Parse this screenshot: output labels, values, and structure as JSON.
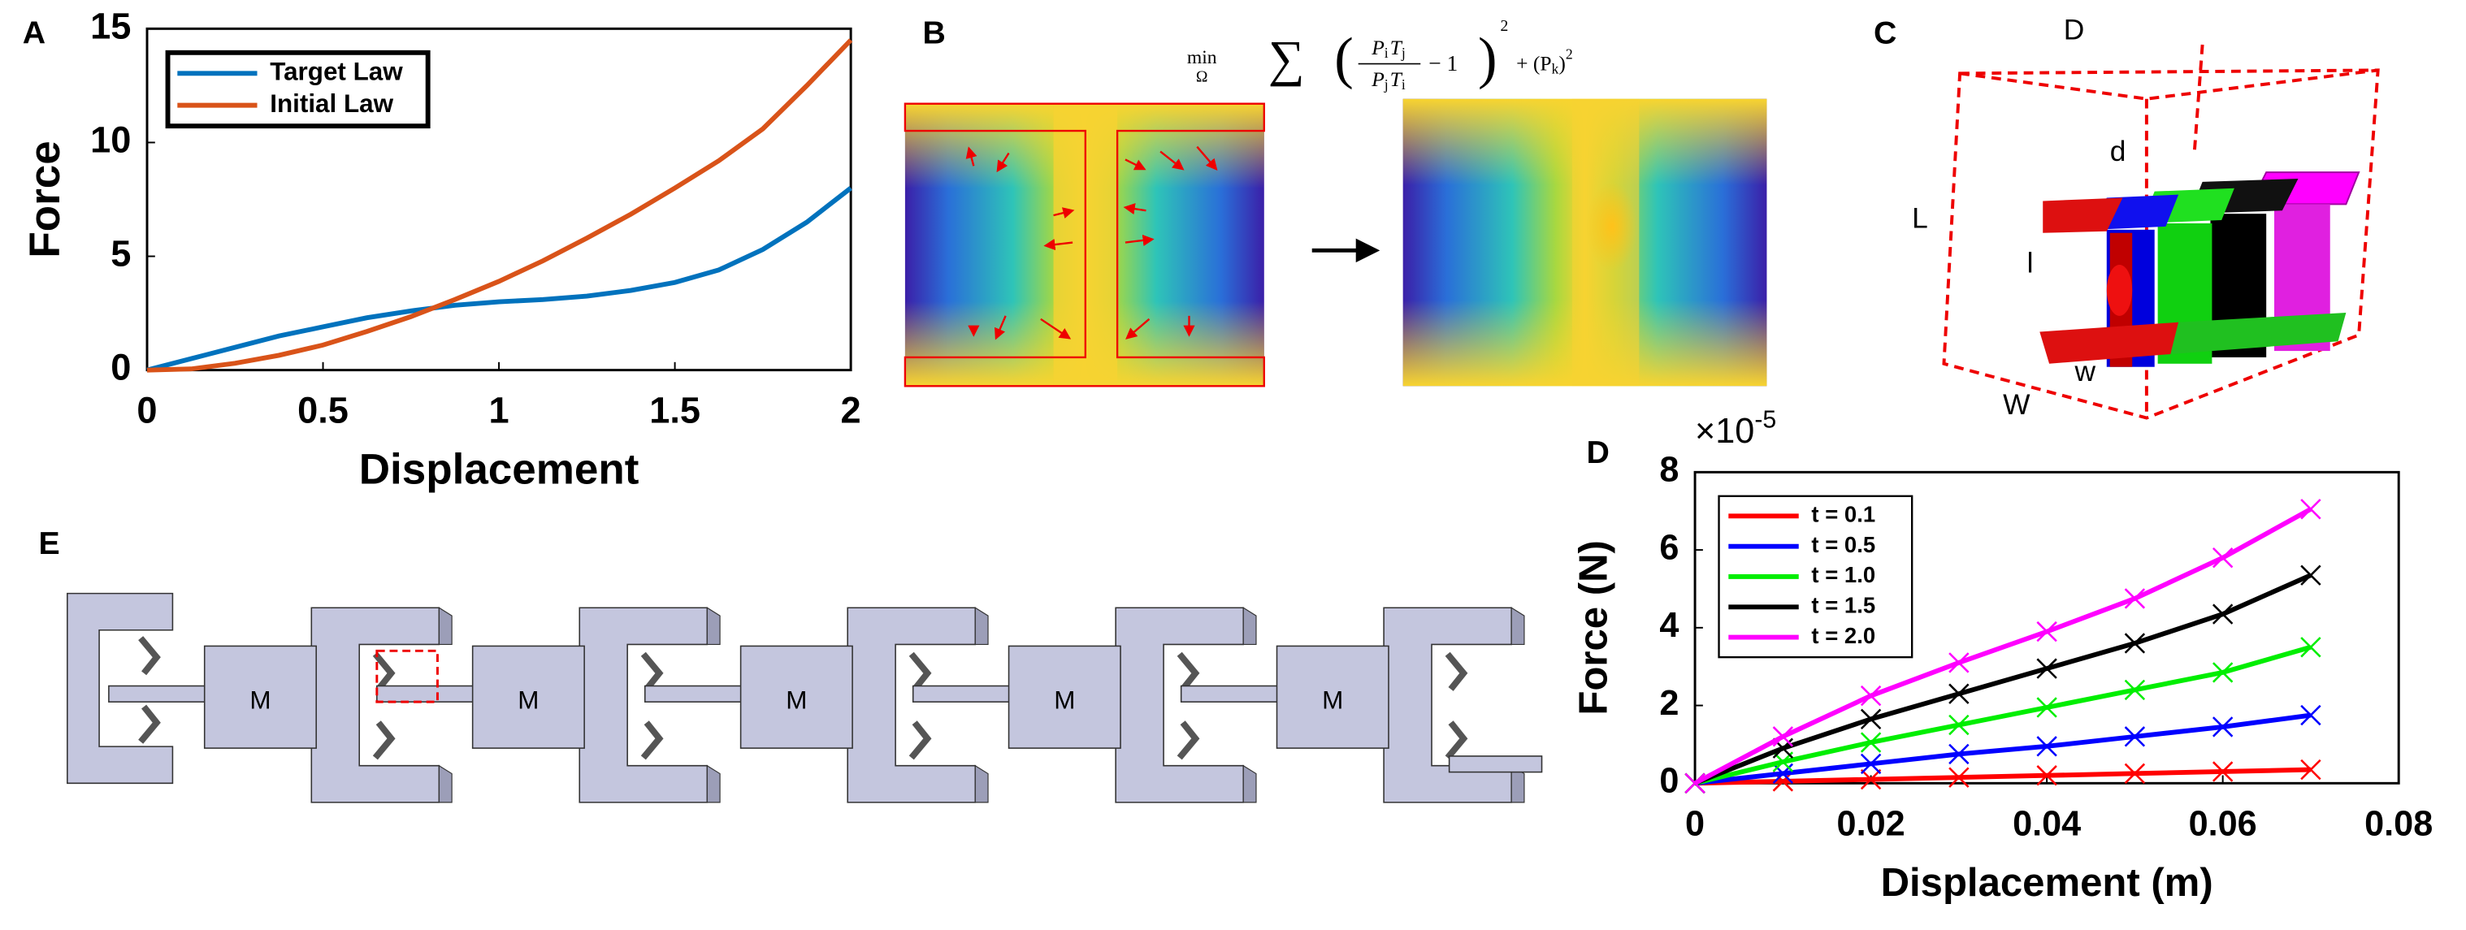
{
  "chart_data": [
    {
      "type": "line",
      "x_label": "Displacement",
      "y_label": "Force",
      "xlim": [
        0,
        2
      ],
      "ylim": [
        0,
        15
      ],
      "xticks": [
        0,
        0.5,
        1,
        1.5,
        2
      ],
      "yticks": [
        0,
        5,
        10,
        15
      ],
      "x": [
        0,
        0.125,
        0.25,
        0.375,
        0.5,
        0.625,
        0.75,
        0.875,
        1,
        1.125,
        1.25,
        1.375,
        1.5,
        1.625,
        1.75,
        1.875,
        2
      ],
      "series": [
        {
          "name": "Target Law",
          "color": "#0072bd",
          "values": [
            0,
            0.5,
            1.0,
            1.5,
            1.9,
            2.3,
            2.6,
            2.85,
            3.0,
            3.1,
            3.25,
            3.5,
            3.85,
            4.4,
            5.3,
            6.5,
            8.0
          ]
        },
        {
          "name": "Initial Law",
          "color": "#d95319",
          "values": [
            0,
            0.05,
            0.3,
            0.65,
            1.1,
            1.7,
            2.35,
            3.1,
            3.9,
            4.8,
            5.8,
            6.85,
            8.0,
            9.2,
            10.6,
            12.5,
            14.5
          ]
        }
      ],
      "legend": "upper left",
      "markers": false,
      "grid": false
    },
    {
      "type": "line",
      "x_label": "Displacement (m)",
      "y_label": "Force (N)",
      "y_multiplier": "×10",
      "y_exponent": "-5",
      "xlim": [
        0,
        0.08
      ],
      "ylim": [
        0,
        8
      ],
      "xticks": [
        0,
        0.02,
        0.04,
        0.06,
        0.08
      ],
      "yticks": [
        0,
        2,
        4,
        6,
        8
      ],
      "x": [
        0,
        0.01,
        0.02,
        0.03,
        0.04,
        0.05,
        0.06,
        0.07
      ],
      "series": [
        {
          "name": "t = 0.1",
          "color": "#ff0000",
          "values": [
            0,
            0.05,
            0.1,
            0.15,
            0.2,
            0.25,
            0.3,
            0.35
          ]
        },
        {
          "name": "t = 0.5",
          "color": "#0000ff",
          "values": [
            0,
            0.25,
            0.5,
            0.75,
            0.95,
            1.2,
            1.45,
            1.75
          ]
        },
        {
          "name": "t = 1.0",
          "color": "#00ee00",
          "values": [
            0,
            0.55,
            1.05,
            1.5,
            1.95,
            2.4,
            2.85,
            3.5
          ]
        },
        {
          "name": "t = 1.5",
          "color": "#000000",
          "values": [
            0,
            0.9,
            1.65,
            2.3,
            2.95,
            3.6,
            4.35,
            5.35
          ]
        },
        {
          "name": "t = 2.0",
          "color": "#ff00ff",
          "values": [
            0,
            1.2,
            2.25,
            3.1,
            3.9,
            4.75,
            5.8,
            7.05
          ]
        }
      ],
      "legend": "upper left",
      "markers": "x",
      "grid": false
    }
  ],
  "panel_labels": [
    "A",
    "B",
    "C",
    "D",
    "E"
  ],
  "panel_b": {
    "formula": {
      "min": "min",
      "domain": "Ω",
      "sum": "∑",
      "open": "(",
      "close": ")",
      "num": [
        "P",
        "i",
        "T",
        "j"
      ],
      "den": [
        "P",
        "j",
        "T",
        "i"
      ],
      "minus": "− 1",
      "power": "2",
      "plus": "+ (P",
      "k": "k",
      "close2": ")",
      "power2": "2"
    }
  },
  "panel_c": {
    "labels": [
      "D",
      "d",
      "L",
      "l",
      "w",
      "W"
    ]
  },
  "panel_e": {
    "labels": [
      "M",
      "M",
      "M",
      "M",
      "M"
    ]
  }
}
